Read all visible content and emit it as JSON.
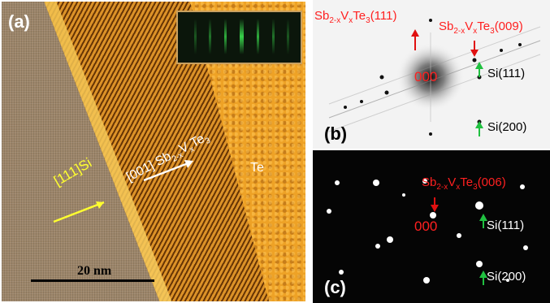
{
  "panel_a": {
    "label": "(a)",
    "si_direction": "[111]Si",
    "layer_direction": "[001] Sb",
    "layer_sub1": "2-x",
    "layer_mid": "V",
    "layer_sub2": "x",
    "layer_end": "Te",
    "layer_sub3": "3",
    "te_label": "Te",
    "scale_text": "20 nm"
  },
  "panel_b": {
    "label": "(b)",
    "spot_center": "000",
    "refl1_pre": "Sb",
    "refl1_sub1": "2-x",
    "refl1_mid": "V",
    "refl1_sub2": "x",
    "refl1_end": "Te",
    "refl1_sub3": "3",
    "refl1_index": "(111)",
    "refl2_pre": "Sb",
    "refl2_sub1": "2-x",
    "refl2_mid": "V",
    "refl2_sub2": "x",
    "refl2_end": "Te",
    "refl2_sub3": "3",
    "refl2_index": "(009)",
    "si111": "Si(111)",
    "si200": "Si(200)"
  },
  "panel_c": {
    "label": "(c)",
    "spot_center": "000",
    "refl_pre": "Sb",
    "refl_sub1": "2-x",
    "refl_mid": "V",
    "refl_sub2": "x",
    "refl_end": "Te",
    "refl_sub3": "3",
    "refl_index": "(006)",
    "si111": "Si(111)",
    "si200": "Si(200)"
  },
  "colors": {
    "red_label": "#ff2020",
    "green_arrow": "#20c040",
    "yellow_label": "#ffff30"
  }
}
